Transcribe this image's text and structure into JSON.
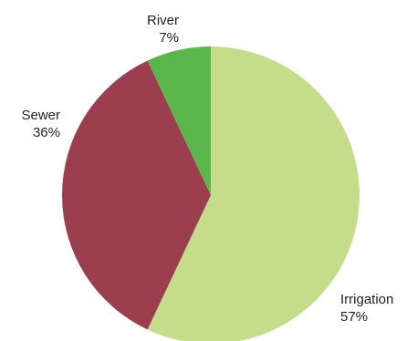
{
  "chart_data": {
    "type": "pie",
    "title": "",
    "slices": [
      {
        "label": "Irrigation",
        "value": 57,
        "value_label": "57%",
        "color": "#c5dc8b"
      },
      {
        "label": "Sewer",
        "value": 36,
        "value_label": "36%",
        "color": "#9b3e4e"
      },
      {
        "label": "River",
        "value": 7,
        "value_label": "7%",
        "color": "#5ab54a"
      }
    ],
    "start_angle_deg": 0,
    "direction": "clockwise",
    "legend": "none"
  }
}
